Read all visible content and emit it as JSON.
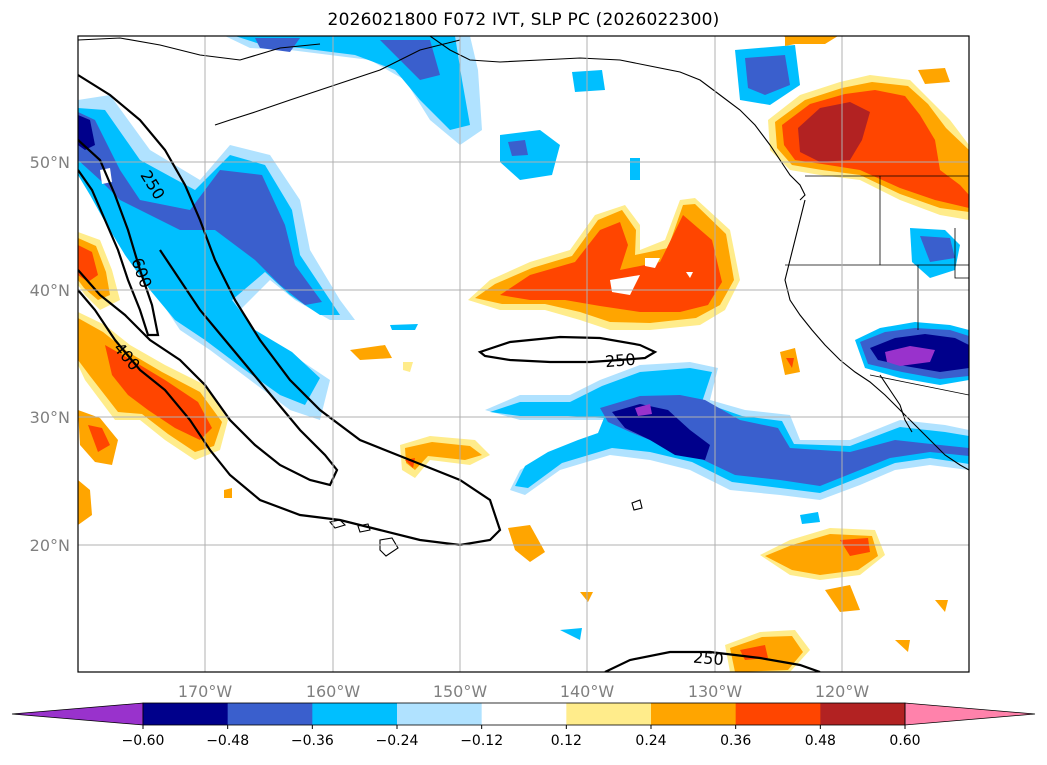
{
  "title": "2026021800 F072 IVT, SLP PC (2026022300)",
  "map": {
    "lat_labels": [
      "50°N",
      "40°N",
      "30°N",
      "20°N"
    ],
    "lon_labels": [
      "170°W",
      "160°W",
      "150°W",
      "140°W",
      "130°W",
      "120°W"
    ],
    "contour_labels": [
      "250",
      "600",
      "400",
      "250",
      "250"
    ],
    "grid": true
  },
  "colorbar": {
    "ticks": [
      "−0.60",
      "−0.48",
      "−0.36",
      "−0.24",
      "−0.12",
      "0.12",
      "0.24",
      "0.36",
      "0.48",
      "0.60"
    ],
    "colors": [
      "#9932cc",
      "#00008b",
      "#3a5fcd",
      "#00bfff",
      "#b0e2ff",
      "#ffffff",
      "#ffec8b",
      "#ffa500",
      "#ff4500",
      "#b22222",
      "#ff82ab"
    ]
  },
  "colors": {
    "grid": "#b0b0b0",
    "coast": "#000000"
  }
}
